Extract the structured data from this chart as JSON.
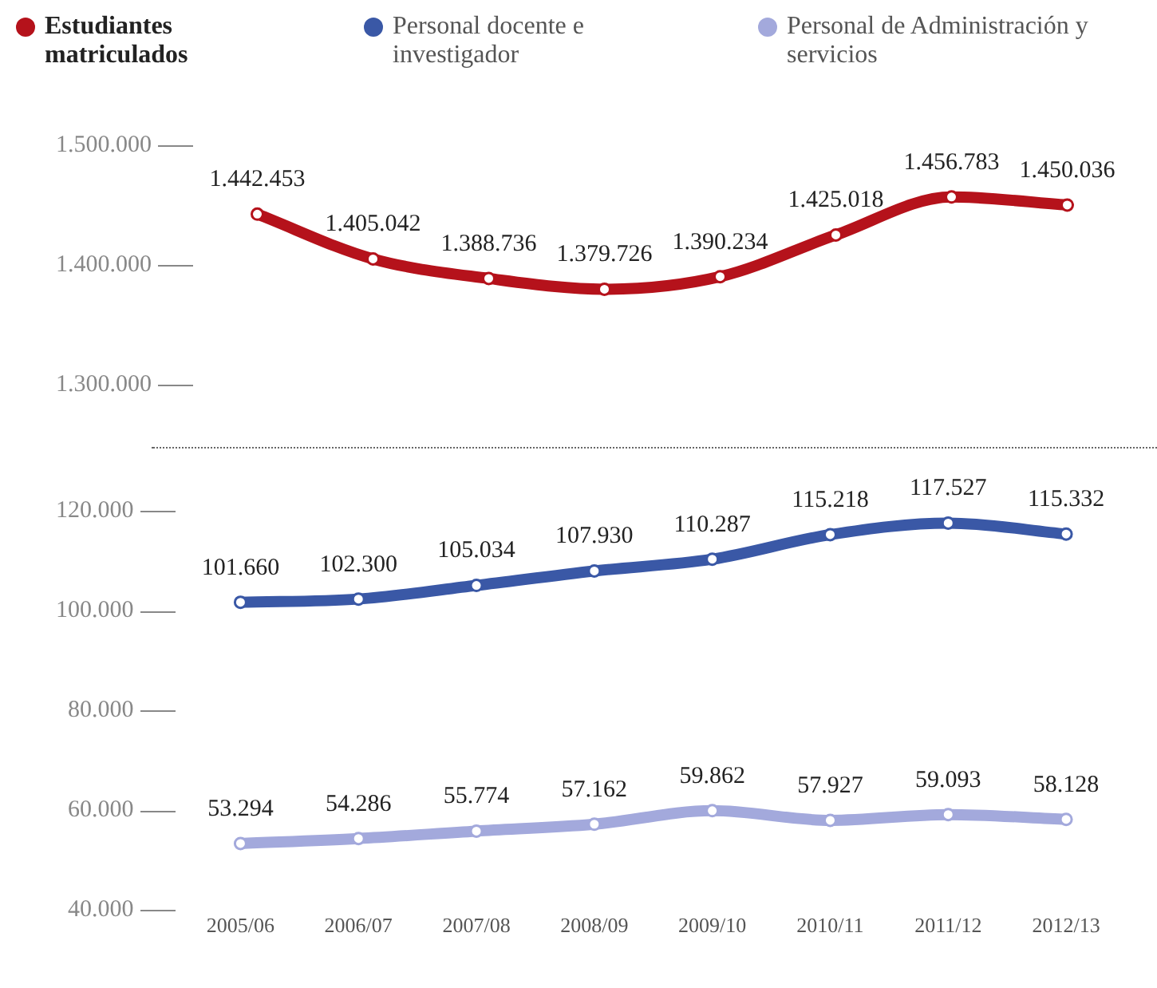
{
  "chart_data": [
    {
      "type": "line",
      "categories": [
        "2005/06",
        "2006/07",
        "2007/08",
        "2008/09",
        "2009/10",
        "2010/11",
        "2011/12",
        "2012/13"
      ],
      "series": [
        {
          "name": "Estudiantes matriculados",
          "color": "#b5121b",
          "values": [
            1442453,
            1405042,
            1388736,
            1379726,
            1390234,
            1425018,
            1456783,
            1450036
          ],
          "value_labels": [
            "1.442.453",
            "1.405.042",
            "1.388.736",
            "1.379.726",
            "1.390.234",
            "1.425.018",
            "1.456.783",
            "1.450.036"
          ]
        }
      ],
      "ylim": [
        1300000,
        1500000
      ],
      "yticks": [
        {
          "value": 1300000,
          "label": "1.300.000"
        },
        {
          "value": 1400000,
          "label": "1.400.000"
        },
        {
          "value": 1500000,
          "label": "1.500.000"
        }
      ],
      "tick_labels": "y",
      "grid": false,
      "legend": "top",
      "marker": "circle"
    },
    {
      "type": "line",
      "categories": [
        "2005/06",
        "2006/07",
        "2007/08",
        "2008/09",
        "2009/10",
        "2010/11",
        "2011/12",
        "2012/13"
      ],
      "series": [
        {
          "name": "Personal docente e investigador",
          "color": "#3a58a6",
          "values": [
            101660,
            102300,
            105034,
            107930,
            110287,
            115218,
            117527,
            115332
          ],
          "value_labels": [
            "101.660",
            "102.300",
            "105.034",
            "107.930",
            "110.287",
            "115.218",
            "117.527",
            "115.332"
          ]
        },
        {
          "name": "Personal de Administración y servicios",
          "color": "#a3a9dc",
          "values": [
            53294,
            54286,
            55774,
            57162,
            59862,
            57927,
            59093,
            58128
          ],
          "value_labels": [
            "53.294",
            "54.286",
            "55.774",
            "57.162",
            "59.862",
            "57.927",
            "59.093",
            "58.128"
          ]
        }
      ],
      "ylim": [
        40000,
        120000
      ],
      "yticks": [
        {
          "value": 40000,
          "label": "40.000"
        },
        {
          "value": 60000,
          "label": "60.000"
        },
        {
          "value": 80000,
          "label": "80.000"
        },
        {
          "value": 100000,
          "label": "100.000"
        },
        {
          "value": 120000,
          "label": "120.000"
        }
      ],
      "grid": false,
      "legend": "top",
      "marker": "circle"
    }
  ]
}
